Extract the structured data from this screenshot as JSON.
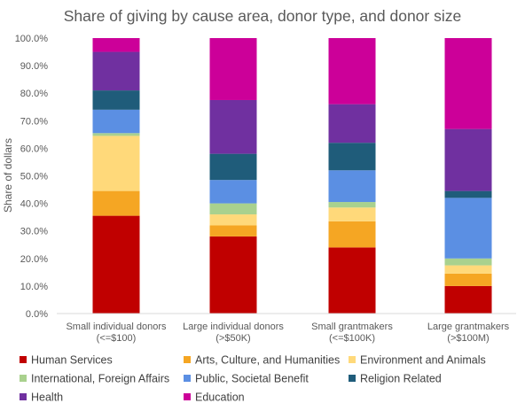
{
  "chart_data": {
    "type": "bar",
    "stacked": true,
    "title": "Share of giving by cause area, donor type, and donor size",
    "ylabel": "Share of dollars",
    "xlabel": "",
    "ylim": [
      0,
      100
    ],
    "yticks": [
      "0.0%",
      "10.0%",
      "20.0%",
      "30.0%",
      "40.0%",
      "50.0%",
      "60.0%",
      "70.0%",
      "80.0%",
      "90.0%",
      "100.0%"
    ],
    "categories": [
      [
        "Small individual donors",
        "(<=$100)"
      ],
      [
        "Large individual donors",
        "(>$50K)"
      ],
      [
        "Small grantmakers",
        "(<=$100K)"
      ],
      [
        "Large grantmakers",
        "(>$100M)"
      ]
    ],
    "grid": false,
    "legend_position": "bottom",
    "series": [
      {
        "name": "Human Services",
        "color": "#C00000",
        "values": [
          35.5,
          28.0,
          24.0,
          10.0
        ]
      },
      {
        "name": "Arts, Culture, and Humanities",
        "color": "#F5A623",
        "values": [
          9.0,
          4.0,
          9.5,
          4.5
        ]
      },
      {
        "name": "Environment and Animals",
        "color": "#FFD97A",
        "values": [
          20.0,
          4.0,
          5.0,
          3.0
        ]
      },
      {
        "name": "International, Foreign Affairs",
        "color": "#A9D18E",
        "values": [
          1.0,
          4.0,
          2.0,
          2.5
        ]
      },
      {
        "name": "Public, Societal Benefit",
        "color": "#5B8FE3",
        "values": [
          8.5,
          8.5,
          11.5,
          22.0
        ]
      },
      {
        "name": "Religion Related",
        "color": "#1F5C7A",
        "values": [
          7.0,
          9.5,
          10.0,
          2.5
        ]
      },
      {
        "name": "Health",
        "color": "#7030A0",
        "values": [
          14.0,
          19.5,
          14.0,
          22.5
        ]
      },
      {
        "name": "Education",
        "color": "#CC0099",
        "values": [
          5.0,
          22.5,
          24.0,
          33.0
        ]
      }
    ]
  }
}
